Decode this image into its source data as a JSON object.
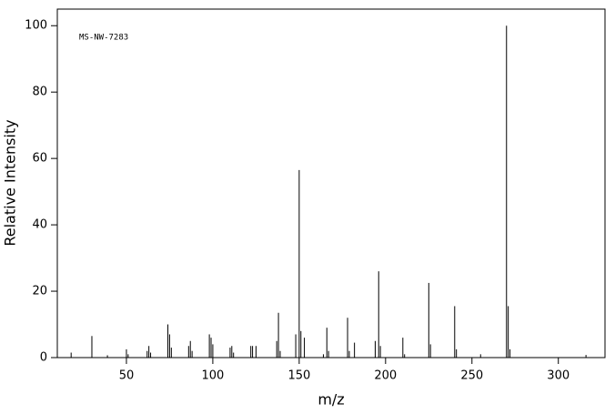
{
  "chart_data": {
    "type": "stem",
    "annotation": "MS-NW-7283",
    "x_label": "m/z",
    "y_label": "Relative Intensity",
    "color": "#000000",
    "x": [
      18,
      30,
      39,
      50,
      51,
      62,
      63,
      64,
      74,
      75,
      76,
      86,
      87,
      88,
      98,
      99,
      100,
      110,
      111,
      112,
      122,
      123,
      125,
      137,
      138,
      139,
      148,
      150,
      151,
      153,
      164,
      166,
      167,
      178,
      179,
      182,
      194,
      196,
      197,
      210,
      211,
      225,
      226,
      240,
      241,
      255,
      270,
      271,
      272,
      316
    ],
    "values": [
      1.5,
      6.5,
      0.7,
      2.5,
      1,
      2,
      3.5,
      1.5,
      10,
      7,
      3,
      3.5,
      5,
      2,
      7,
      6,
      4,
      3,
      3.5,
      1.5,
      3.5,
      3.5,
      3.5,
      5,
      13.5,
      2,
      7,
      56.5,
      8,
      6,
      1,
      9,
      2,
      12,
      2,
      4.5,
      5,
      26,
      3.5,
      6,
      1,
      22.5,
      4,
      15.5,
      2.5,
      1,
      100,
      15.5,
      2.5,
      0.8
    ],
    "xlim": [
      10,
      327
    ],
    "ylim": [
      0,
      105
    ],
    "xticks": [
      50,
      100,
      150,
      200,
      250,
      300
    ],
    "yticks": [
      0,
      20,
      40,
      60,
      80,
      100
    ]
  }
}
